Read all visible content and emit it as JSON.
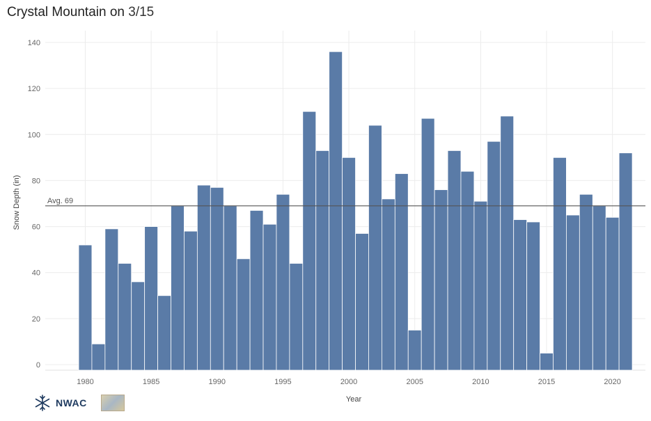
{
  "title": {
    "place": "Crystal Mountain",
    "date_prefix": "on",
    "date": "3/15"
  },
  "logo": {
    "text": "NWAC"
  },
  "colors": {
    "bar": "#5a7ba7",
    "avg_line": "#555555",
    "grid": "#ececec"
  },
  "chart_data": {
    "type": "bar",
    "xlabel": "Year",
    "ylabel": "Snow Depth (in)",
    "ylim": [
      0,
      140
    ],
    "yticks": [
      0,
      20,
      40,
      60,
      80,
      100,
      120,
      140
    ],
    "xticks": [
      1980,
      1985,
      1990,
      1995,
      2000,
      2005,
      2010,
      2015,
      2020
    ],
    "grid": true,
    "average": {
      "label": "Avg. 69",
      "value": 69
    },
    "years": [
      1980,
      1981,
      1982,
      1983,
      1984,
      1985,
      1986,
      1987,
      1988,
      1989,
      1990,
      1991,
      1992,
      1993,
      1994,
      1995,
      1996,
      1997,
      1998,
      1999,
      2000,
      2001,
      2002,
      2003,
      2004,
      2005,
      2006,
      2007,
      2008,
      2009,
      2010,
      2011,
      2012,
      2013,
      2014,
      2015,
      2016,
      2017,
      2018,
      2019,
      2020,
      2021
    ],
    "values": [
      52,
      9,
      59,
      44,
      36,
      60,
      30,
      69,
      58,
      78,
      77,
      69,
      46,
      67,
      61,
      74,
      44,
      110,
      93,
      136,
      90,
      57,
      104,
      72,
      83,
      15,
      107,
      76,
      93,
      84,
      71,
      97,
      108,
      63,
      62,
      5,
      90,
      65,
      74,
      69,
      64,
      92
    ]
  }
}
